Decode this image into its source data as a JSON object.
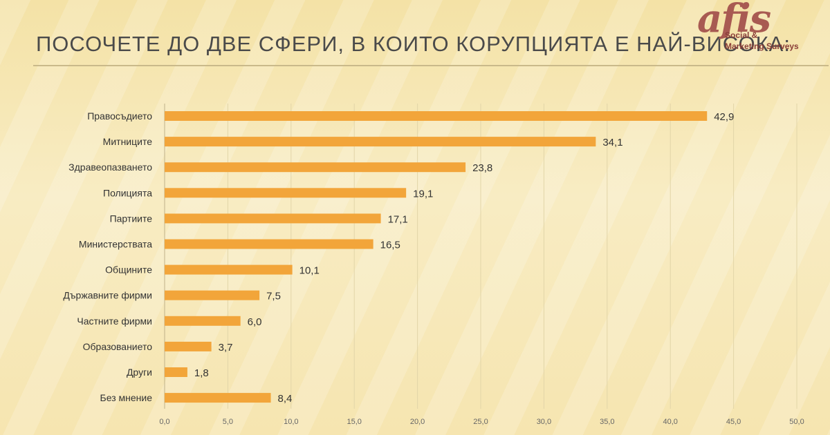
{
  "title": "ПОСОЧЕТЕ ДО ДВЕ СФЕРИ, В КОИТО КОРУПЦИЯТА Е НАЙ-ВИСОКА:",
  "logo": {
    "mark": "afis",
    "line1": "Social &",
    "line2": "Marketing Surveys"
  },
  "colors": {
    "bar": "#f2a53a",
    "grid": "#e2d5a8",
    "text": "#333333"
  },
  "chart_data": {
    "type": "bar",
    "orientation": "horizontal",
    "categories": [
      "Правосъдието",
      "Митниците",
      "Здравеопазването",
      "Полицията",
      "Партиите",
      "Министерствата",
      "Общините",
      "Държавните фирми",
      "Частните фирми",
      "Образованието",
      "Други",
      "Без мнение"
    ],
    "values": [
      42.9,
      34.1,
      23.8,
      19.1,
      17.1,
      16.5,
      10.1,
      7.5,
      6.0,
      3.7,
      1.8,
      8.4
    ],
    "value_labels": [
      "42,9",
      "34,1",
      "23,8",
      "19,1",
      "17,1",
      "16,5",
      "10,1",
      "7,5",
      "6,0",
      "3,7",
      "1,8",
      "8,4"
    ],
    "xlim": [
      0,
      50
    ],
    "ticks": [
      "0,0",
      "5,0",
      "10,0",
      "15,0",
      "20,0",
      "25,0",
      "30,0",
      "35,0",
      "40,0",
      "45,0",
      "50,0"
    ],
    "grid": true,
    "legend": false
  }
}
